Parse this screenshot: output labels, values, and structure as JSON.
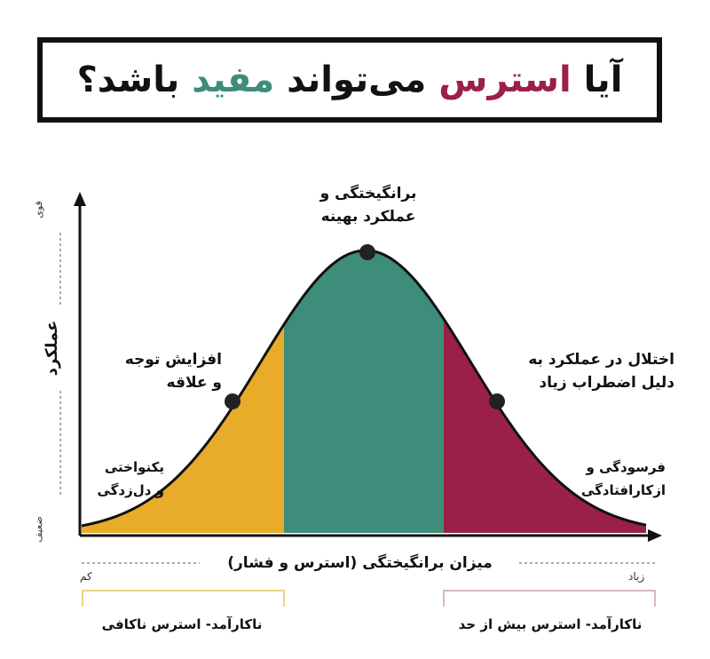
{
  "title": {
    "part1": "آیا",
    "stress_word": "استرس",
    "middle": "می‌تواند",
    "useful_word": "مفید",
    "end": "باشد؟"
  },
  "colors": {
    "stress": "#9b2047",
    "useful": "#3e8c7a",
    "low_zone": "#e8ac2a",
    "optimal_zone": "#3e8c7a",
    "high_zone": "#9b2047",
    "low_bracket": "#e8c85a",
    "high_bracket": "#c9a0b0"
  },
  "axes": {
    "y_label": "عملکرد",
    "y_strong": "قوی",
    "y_weak": "ضعیف",
    "x_label": "میزان برانگیختگی (استرس و فشار)",
    "x_low": "کم",
    "x_high": "زیاد"
  },
  "labels": {
    "peak": [
      "برانگیختگی و",
      "عملکرد بهینه"
    ],
    "left_point": [
      "افزایش توجه",
      "و علاقه"
    ],
    "right_point": [
      "اختلال در عملکرد به",
      "دلیل اضطراب زیاد"
    ],
    "left_low": [
      "یکنواختی",
      "و دل‌زدگی"
    ],
    "right_low": [
      "فرسودگی و",
      "ازکارافتادگی"
    ]
  },
  "zones": {
    "low": "ناکارآمد- استرس ناکافی",
    "high": "ناکارآمد- استرس بیش از حد"
  }
}
